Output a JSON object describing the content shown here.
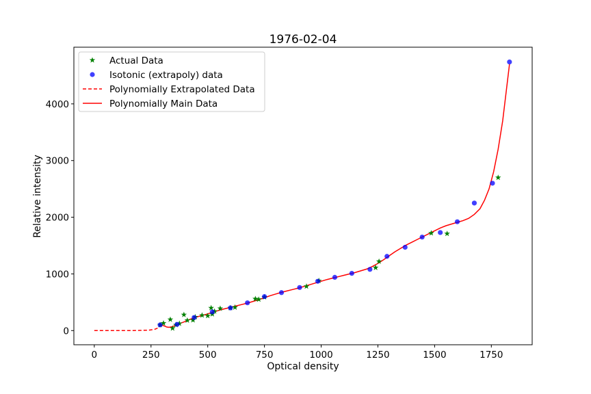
{
  "chart_data": {
    "type": "scatter",
    "title": "1976-02-04",
    "xlabel": "Optical density",
    "ylabel": "Relative intensity",
    "xlim": [
      -90,
      1930
    ],
    "ylim": [
      -250,
      5000
    ],
    "xticks": [
      0,
      250,
      500,
      750,
      1000,
      1250,
      1500,
      1750
    ],
    "yticks": [
      0,
      1000,
      2000,
      3000,
      4000
    ],
    "grid": false,
    "legend_position": "top-left",
    "series": [
      {
        "name": "Actual Data",
        "kind": "scatter",
        "marker": "star",
        "color": "#008000",
        "points": [
          [
            290,
            100
          ],
          [
            305,
            130
          ],
          [
            335,
            195
          ],
          [
            345,
            40
          ],
          [
            360,
            100
          ],
          [
            375,
            125
          ],
          [
            395,
            280
          ],
          [
            410,
            180
          ],
          [
            435,
            185
          ],
          [
            445,
            240
          ],
          [
            475,
            270
          ],
          [
            500,
            260
          ],
          [
            515,
            400
          ],
          [
            520,
            290
          ],
          [
            530,
            340
          ],
          [
            555,
            390
          ],
          [
            600,
            400
          ],
          [
            620,
            410
          ],
          [
            710,
            560
          ],
          [
            725,
            550
          ],
          [
            750,
            590
          ],
          [
            935,
            780
          ],
          [
            990,
            880
          ],
          [
            1240,
            1110
          ],
          [
            1255,
            1220
          ],
          [
            1485,
            1720
          ],
          [
            1555,
            1710
          ],
          [
            1780,
            2700
          ]
        ]
      },
      {
        "name": "Isotonic (extrapoly) data",
        "kind": "scatter",
        "marker": "circle",
        "color": "#0000ff",
        "points": [
          [
            290,
            100
          ],
          [
            365,
            110
          ],
          [
            440,
            230
          ],
          [
            520,
            330
          ],
          [
            600,
            400
          ],
          [
            675,
            490
          ],
          [
            750,
            600
          ],
          [
            825,
            670
          ],
          [
            905,
            760
          ],
          [
            985,
            870
          ],
          [
            1060,
            940
          ],
          [
            1135,
            1010
          ],
          [
            1215,
            1080
          ],
          [
            1290,
            1310
          ],
          [
            1370,
            1470
          ],
          [
            1445,
            1650
          ],
          [
            1525,
            1730
          ],
          [
            1600,
            1920
          ],
          [
            1675,
            2250
          ],
          [
            1755,
            2600
          ],
          [
            1830,
            4740
          ]
        ]
      },
      {
        "name": "Polynomially Extrapolated Data",
        "kind": "line",
        "style": "dashed",
        "color": "#ff0000",
        "points": [
          [
            0,
            0
          ],
          [
            50,
            0
          ],
          [
            100,
            0
          ],
          [
            150,
            0
          ],
          [
            200,
            3
          ],
          [
            240,
            8
          ],
          [
            265,
            20
          ],
          [
            280,
            45
          ],
          [
            290,
            80
          ]
        ]
      },
      {
        "name": "Polynomially Main Data",
        "kind": "line",
        "style": "solid",
        "color": "#ff0000",
        "points": [
          [
            290,
            80
          ],
          [
            300,
            95
          ],
          [
            310,
            80
          ],
          [
            320,
            62
          ],
          [
            330,
            58
          ],
          [
            345,
            70
          ],
          [
            360,
            95
          ],
          [
            380,
            130
          ],
          [
            400,
            160
          ],
          [
            420,
            195
          ],
          [
            440,
            225
          ],
          [
            460,
            250
          ],
          [
            480,
            270
          ],
          [
            500,
            295
          ],
          [
            520,
            320
          ],
          [
            540,
            345
          ],
          [
            560,
            370
          ],
          [
            580,
            390
          ],
          [
            600,
            410
          ],
          [
            625,
            435
          ],
          [
            650,
            460
          ],
          [
            675,
            485
          ],
          [
            700,
            515
          ],
          [
            725,
            545
          ],
          [
            750,
            580
          ],
          [
            775,
            615
          ],
          [
            800,
            645
          ],
          [
            825,
            675
          ],
          [
            850,
            700
          ],
          [
            875,
            725
          ],
          [
            900,
            750
          ],
          [
            925,
            780
          ],
          [
            950,
            810
          ],
          [
            975,
            840
          ],
          [
            1000,
            870
          ],
          [
            1025,
            900
          ],
          [
            1050,
            925
          ],
          [
            1075,
            950
          ],
          [
            1100,
            975
          ],
          [
            1125,
            1000
          ],
          [
            1150,
            1025
          ],
          [
            1175,
            1055
          ],
          [
            1200,
            1085
          ],
          [
            1225,
            1130
          ],
          [
            1250,
            1185
          ],
          [
            1275,
            1250
          ],
          [
            1300,
            1320
          ],
          [
            1325,
            1390
          ],
          [
            1350,
            1450
          ],
          [
            1375,
            1510
          ],
          [
            1400,
            1560
          ],
          [
            1425,
            1610
          ],
          [
            1450,
            1660
          ],
          [
            1475,
            1710
          ],
          [
            1500,
            1760
          ],
          [
            1525,
            1810
          ],
          [
            1550,
            1850
          ],
          [
            1575,
            1880
          ],
          [
            1600,
            1910
          ],
          [
            1625,
            1940
          ],
          [
            1650,
            1980
          ],
          [
            1675,
            2050
          ],
          [
            1700,
            2150
          ],
          [
            1720,
            2300
          ],
          [
            1740,
            2500
          ],
          [
            1760,
            2800
          ],
          [
            1780,
            3200
          ],
          [
            1800,
            3700
          ],
          [
            1815,
            4200
          ],
          [
            1830,
            4700
          ]
        ]
      }
    ]
  }
}
